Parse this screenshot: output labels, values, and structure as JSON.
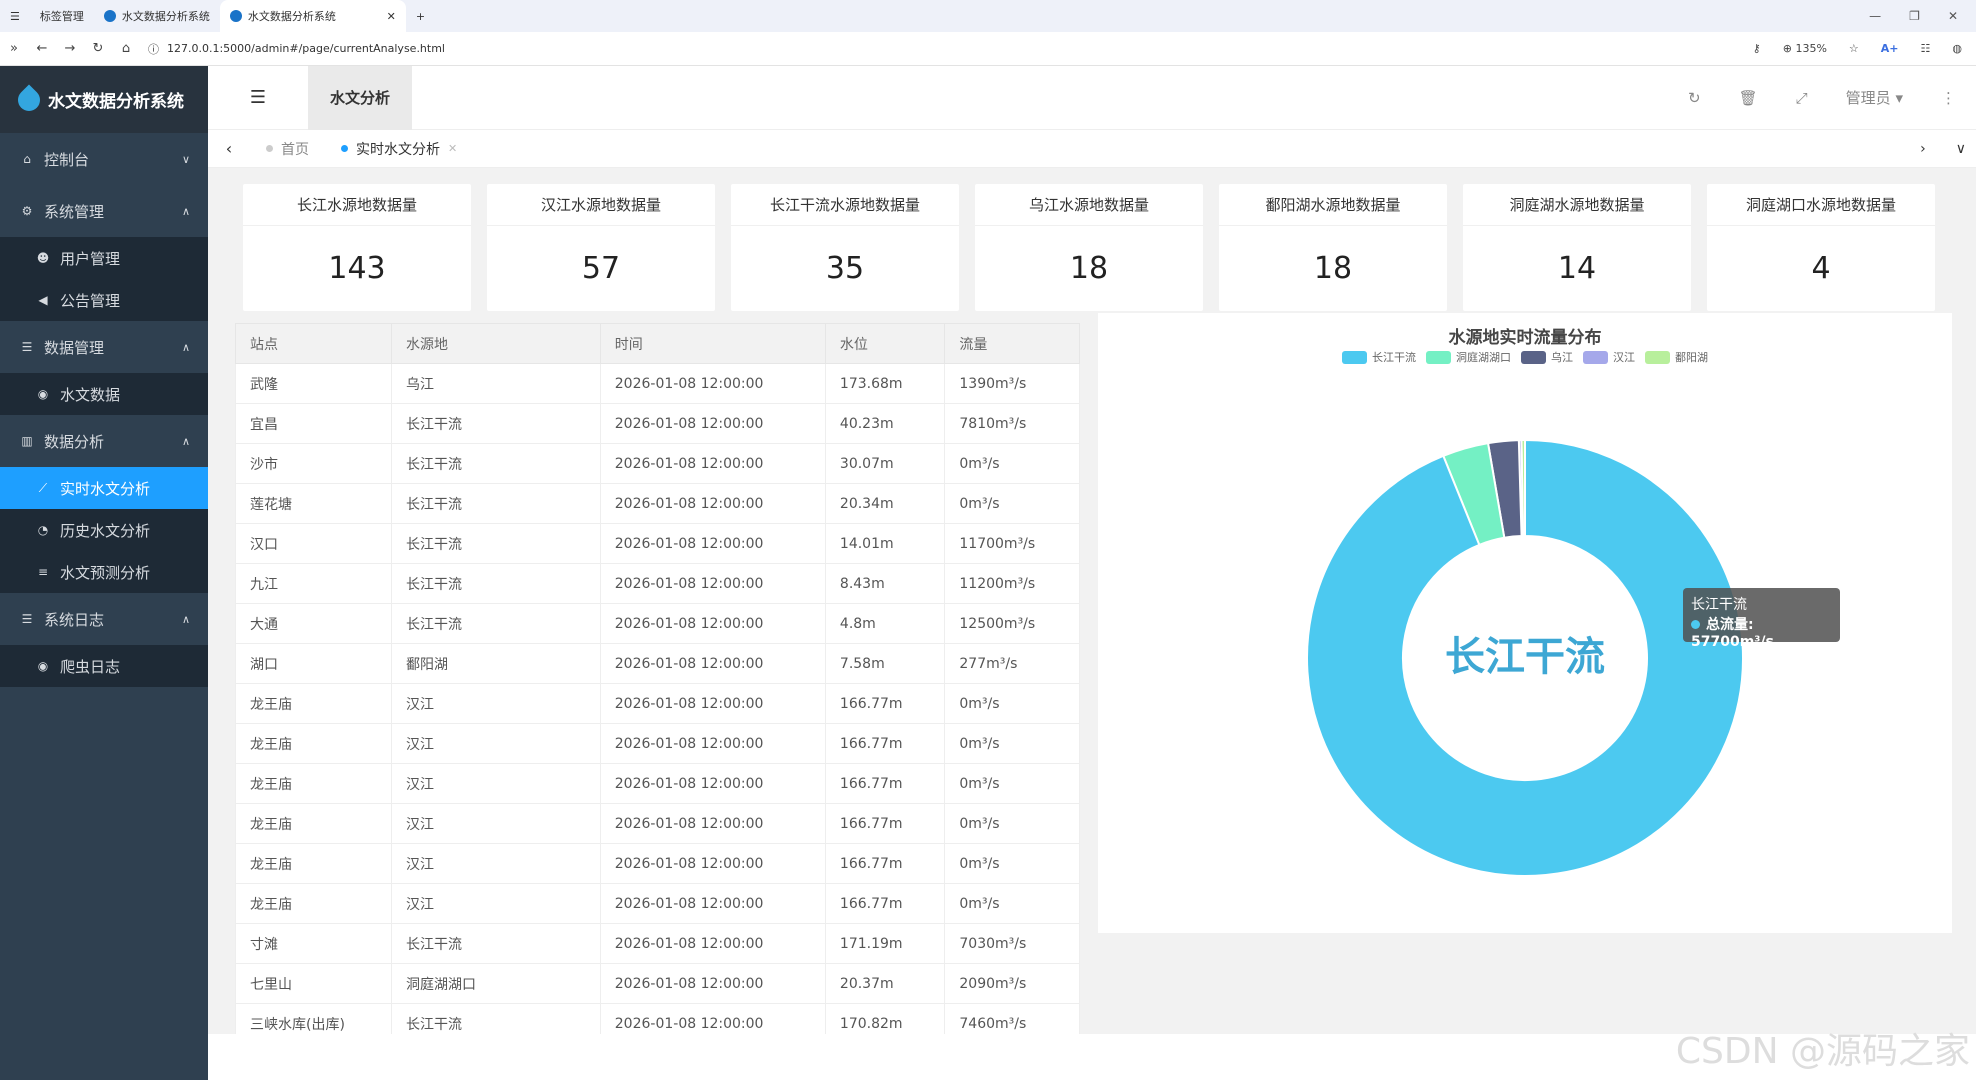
{
  "browser": {
    "tabs": [
      "标签管理",
      "水文数据分析系统",
      "水文数据分析系统"
    ],
    "url": "127.0.0.1:5000/admin#/page/currentAnalyse.html",
    "zoom": "135%",
    "ai_label": "A+"
  },
  "sidebar": {
    "logo": "水文数据分析系统",
    "groups": [
      {
        "label": "控制台",
        "items": []
      },
      {
        "label": "系统管理",
        "items": [
          "用户管理",
          "公告管理"
        ]
      },
      {
        "label": "数据管理",
        "items": [
          "水文数据"
        ]
      },
      {
        "label": "数据分析",
        "items": [
          "实时水文分析",
          "历史水文分析",
          "水文预测分析"
        ]
      },
      {
        "label": "系统日志",
        "items": [
          "爬虫日志"
        ]
      }
    ]
  },
  "header": {
    "tab": "水文分析",
    "user": "管理员"
  },
  "page_tabs": [
    "首页",
    "实时水文分析"
  ],
  "cards": [
    {
      "title": "长江水源地数据量",
      "value": "143"
    },
    {
      "title": "汉江水源地数据量",
      "value": "57"
    },
    {
      "title": "长江干流水源地数据量",
      "value": "35"
    },
    {
      "title": "乌江水源地数据量",
      "value": "18"
    },
    {
      "title": "鄱阳湖水源地数据量",
      "value": "18"
    },
    {
      "title": "洞庭湖水源地数据量",
      "value": "14"
    },
    {
      "title": "洞庭湖口水源地数据量",
      "value": "4"
    }
  ],
  "table": {
    "headers": [
      "站点",
      "水源地",
      "时间",
      "水位",
      "流量"
    ],
    "rows": [
      [
        "武隆",
        "乌江",
        "2026-01-08 12:00:00",
        "173.68m",
        "1390m³/s"
      ],
      [
        "宜昌",
        "长江干流",
        "2026-01-08 12:00:00",
        "40.23m",
        "7810m³/s"
      ],
      [
        "沙市",
        "长江干流",
        "2026-01-08 12:00:00",
        "30.07m",
        "0m³/s"
      ],
      [
        "莲花塘",
        "长江干流",
        "2026-01-08 12:00:00",
        "20.34m",
        "0m³/s"
      ],
      [
        "汉口",
        "长江干流",
        "2026-01-08 12:00:00",
        "14.01m",
        "11700m³/s"
      ],
      [
        "九江",
        "长江干流",
        "2026-01-08 12:00:00",
        "8.43m",
        "11200m³/s"
      ],
      [
        "大通",
        "长江干流",
        "2026-01-08 12:00:00",
        "4.8m",
        "12500m³/s"
      ],
      [
        "湖口",
        "鄱阳湖",
        "2026-01-08 12:00:00",
        "7.58m",
        "277m³/s"
      ],
      [
        "龙王庙",
        "汉江",
        "2026-01-08 12:00:00",
        "166.77m",
        "0m³/s"
      ],
      [
        "龙王庙",
        "汉江",
        "2026-01-08 12:00:00",
        "166.77m",
        "0m³/s"
      ],
      [
        "龙王庙",
        "汉江",
        "2026-01-08 12:00:00",
        "166.77m",
        "0m³/s"
      ],
      [
        "龙王庙",
        "汉江",
        "2026-01-08 12:00:00",
        "166.77m",
        "0m³/s"
      ],
      [
        "龙王庙",
        "汉江",
        "2026-01-08 12:00:00",
        "166.77m",
        "0m³/s"
      ],
      [
        "龙王庙",
        "汉江",
        "2026-01-08 12:00:00",
        "166.77m",
        "0m³/s"
      ],
      [
        "寸滩",
        "长江干流",
        "2026-01-08 12:00:00",
        "171.19m",
        "7030m³/s"
      ],
      [
        "七里山",
        "洞庭湖湖口",
        "2026-01-08 12:00:00",
        "20.37m",
        "2090m³/s"
      ],
      [
        "三峡水库(出库)",
        "长江干流",
        "2026-01-08 12:00:00",
        "170.82m",
        "7460m³/s"
      ]
    ]
  },
  "chart_data": {
    "type": "pie",
    "title": "水源地实时流量分布",
    "center_label": "长江干流",
    "series": [
      {
        "name": "长江干流",
        "value": 57700,
        "color": "#4cc9f0"
      },
      {
        "name": "洞庭湖湖口",
        "value": 2090,
        "color": "#74f0c4"
      },
      {
        "name": "乌江",
        "value": 1390,
        "color": "#5a6387"
      },
      {
        "name": "汉江",
        "value": 0,
        "color": "#a5a8ea"
      },
      {
        "name": "鄱阳湖",
        "value": 277,
        "color": "#b8ef9c"
      }
    ],
    "tooltip": {
      "name": "长江干流",
      "label": "总流量",
      "value": "57700m³/s"
    }
  },
  "watermark": "CSDN @源码之家"
}
